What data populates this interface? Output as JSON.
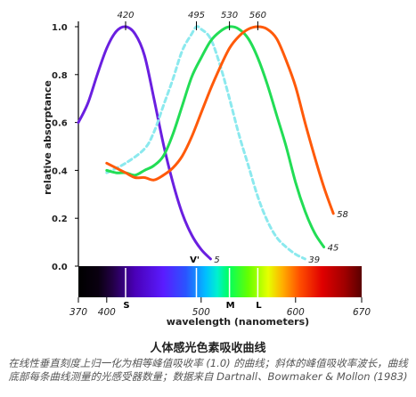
{
  "chart_data": {
    "type": "line",
    "title": "",
    "xlabel": "wavelength (nanometers)",
    "ylabel": "relative absorptance",
    "xlim": [
      370,
      670
    ],
    "ylim": [
      0,
      1
    ],
    "x_ticks": [
      370,
      400,
      500,
      600,
      670
    ],
    "y_ticks": [
      "0.0",
      "0.2",
      "0.4",
      "0.6",
      "0.8",
      "1.0"
    ],
    "peak_labels": [
      420,
      495,
      530,
      560
    ],
    "band_markers": [
      {
        "label": "S",
        "x": 420
      },
      {
        "label": "V'",
        "x": 495
      },
      {
        "label": "M",
        "x": 530
      },
      {
        "label": "L",
        "x": 560
      }
    ],
    "grid": false,
    "legend": "none",
    "series": [
      {
        "color": "#6a1fe0",
        "style": "solid",
        "end_label": "5",
        "points": [
          [
            370,
            0.6
          ],
          [
            380,
            0.68
          ],
          [
            390,
            0.8
          ],
          [
            400,
            0.91
          ],
          [
            410,
            0.98
          ],
          [
            420,
            1.0
          ],
          [
            430,
            0.97
          ],
          [
            440,
            0.88
          ],
          [
            450,
            0.7
          ],
          [
            460,
            0.51
          ],
          [
            470,
            0.35
          ],
          [
            480,
            0.22
          ],
          [
            490,
            0.13
          ],
          [
            500,
            0.07
          ],
          [
            510,
            0.03
          ]
        ]
      },
      {
        "color": "#8be9ee",
        "style": "dashed",
        "end_label": "39",
        "points": [
          [
            400,
            0.39
          ],
          [
            420,
            0.43
          ],
          [
            440,
            0.49
          ],
          [
            450,
            0.56
          ],
          [
            460,
            0.67
          ],
          [
            470,
            0.78
          ],
          [
            480,
            0.9
          ],
          [
            490,
            0.97
          ],
          [
            495,
            1.0
          ],
          [
            500,
            0.99
          ],
          [
            510,
            0.95
          ],
          [
            520,
            0.84
          ],
          [
            530,
            0.7
          ],
          [
            540,
            0.55
          ],
          [
            550,
            0.42
          ],
          [
            560,
            0.29
          ],
          [
            570,
            0.19
          ],
          [
            580,
            0.12
          ],
          [
            590,
            0.08
          ],
          [
            600,
            0.05
          ],
          [
            610,
            0.03
          ]
        ]
      },
      {
        "color": "#22dd55",
        "style": "solid",
        "end_label": "45",
        "points": [
          [
            400,
            0.4
          ],
          [
            410,
            0.39
          ],
          [
            420,
            0.39
          ],
          [
            430,
            0.38
          ],
          [
            440,
            0.4
          ],
          [
            450,
            0.42
          ],
          [
            460,
            0.46
          ],
          [
            470,
            0.55
          ],
          [
            480,
            0.67
          ],
          [
            490,
            0.79
          ],
          [
            500,
            0.87
          ],
          [
            510,
            0.94
          ],
          [
            520,
            0.98
          ],
          [
            530,
            1.0
          ],
          [
            540,
            0.99
          ],
          [
            550,
            0.95
          ],
          [
            560,
            0.87
          ],
          [
            570,
            0.76
          ],
          [
            580,
            0.63
          ],
          [
            590,
            0.5
          ],
          [
            600,
            0.35
          ],
          [
            610,
            0.23
          ],
          [
            620,
            0.14
          ],
          [
            630,
            0.08
          ]
        ]
      },
      {
        "color": "#ff5a0a",
        "style": "solid",
        "end_label": "58",
        "points": [
          [
            400,
            0.43
          ],
          [
            410,
            0.41
          ],
          [
            420,
            0.39
          ],
          [
            430,
            0.37
          ],
          [
            440,
            0.37
          ],
          [
            450,
            0.36
          ],
          [
            460,
            0.38
          ],
          [
            470,
            0.41
          ],
          [
            480,
            0.46
          ],
          [
            490,
            0.54
          ],
          [
            500,
            0.64
          ],
          [
            510,
            0.74
          ],
          [
            520,
            0.83
          ],
          [
            530,
            0.91
          ],
          [
            540,
            0.96
          ],
          [
            550,
            0.99
          ],
          [
            560,
            1.0
          ],
          [
            570,
            0.99
          ],
          [
            580,
            0.95
          ],
          [
            590,
            0.86
          ],
          [
            600,
            0.75
          ],
          [
            610,
            0.6
          ],
          [
            620,
            0.46
          ],
          [
            630,
            0.33
          ],
          [
            640,
            0.22
          ]
        ]
      }
    ]
  },
  "caption": {
    "title": "人体感光色素吸收曲线",
    "note": "在线性垂直刻度上归一化为相等峰值吸收率 (1.0) 的曲线；斜体的峰值吸收率波长，曲线底部每条曲线测量的光感受器数量；数据来自 Dartnall、Bowmaker & Mollon (1983)"
  }
}
